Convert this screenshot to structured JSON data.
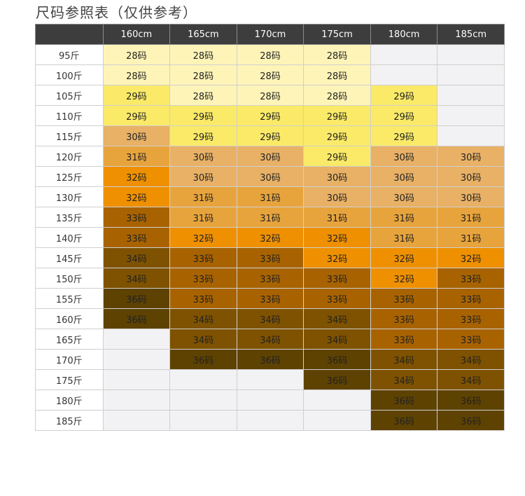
{
  "title": "尺码参照表（仅供参考）",
  "corner": "",
  "heights": [
    "160cm",
    "165cm",
    "170cm",
    "175cm",
    "180cm",
    "185cm"
  ],
  "palette": {
    "28码": "#fff4b8",
    "29码": "#faea68",
    "30码": "#e8b166",
    "31码": "#e8a43c",
    "32码": "#ef9000",
    "33码": "#a86300",
    "34码": "#7e5200",
    "36码": "#5e4202",
    "empty": "#f2f2f4"
  },
  "rows": [
    {
      "weight": "95斤",
      "cells": [
        "28码",
        "28码",
        "28码",
        "28码",
        "",
        ""
      ]
    },
    {
      "weight": "100斤",
      "cells": [
        "28码",
        "28码",
        "28码",
        "28码",
        "",
        ""
      ]
    },
    {
      "weight": "105斤",
      "cells": [
        "29码",
        "28码",
        "28码",
        "28码",
        "29码",
        ""
      ]
    },
    {
      "weight": "110斤",
      "cells": [
        "29码",
        "29码",
        "29码",
        "29码",
        "29码",
        ""
      ]
    },
    {
      "weight": "115斤",
      "cells": [
        "30码",
        "29码",
        "29码",
        "29码",
        "29码",
        ""
      ]
    },
    {
      "weight": "120斤",
      "cells": [
        "31码",
        "30码",
        "30码",
        "29码",
        "30码",
        "30码"
      ]
    },
    {
      "weight": "125斤",
      "cells": [
        "32码",
        "30码",
        "30码",
        "30码",
        "30码",
        "30码"
      ]
    },
    {
      "weight": "130斤",
      "cells": [
        "32码",
        "31码",
        "31码",
        "30码",
        "30码",
        "30码"
      ]
    },
    {
      "weight": "135斤",
      "cells": [
        "33码",
        "31码",
        "31码",
        "31码",
        "31码",
        "31码"
      ]
    },
    {
      "weight": "140斤",
      "cells": [
        "33码",
        "32码",
        "32码",
        "32码",
        "31码",
        "31码"
      ]
    },
    {
      "weight": "145斤",
      "cells": [
        "34码",
        "33码",
        "33码",
        "32码",
        "32码",
        "32码"
      ]
    },
    {
      "weight": "150斤",
      "cells": [
        "34码",
        "33码",
        "33码",
        "33码",
        "32码",
        "33码"
      ]
    },
    {
      "weight": "155斤",
      "cells": [
        "36码",
        "33码",
        "33码",
        "33码",
        "33码",
        "33码"
      ]
    },
    {
      "weight": "160斤",
      "cells": [
        "36码",
        "34码",
        "34码",
        "34码",
        "33码",
        "33码"
      ]
    },
    {
      "weight": "165斤",
      "cells": [
        "",
        "34码",
        "34码",
        "34码",
        "33码",
        "33码"
      ]
    },
    {
      "weight": "170斤",
      "cells": [
        "",
        "36码",
        "36码",
        "36码",
        "34码",
        "34码"
      ]
    },
    {
      "weight": "175斤",
      "cells": [
        "",
        "",
        "",
        "36码",
        "34码",
        "34码"
      ]
    },
    {
      "weight": "180斤",
      "cells": [
        "",
        "",
        "",
        "",
        "36码",
        "36码"
      ]
    },
    {
      "weight": "185斤",
      "cells": [
        "",
        "",
        "",
        "",
        "36码",
        "36码"
      ]
    }
  ]
}
